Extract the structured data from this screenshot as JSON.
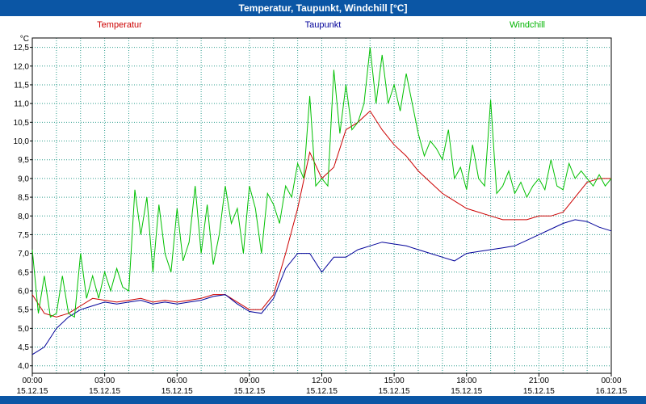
{
  "window": {
    "title": "Temperatur, Taupunkt, Windchill [°C]"
  },
  "colors": {
    "titlebar": "#0b56a5",
    "grid": "#2e9e8e",
    "plot_border": "#000000",
    "axis_text": "#000000",
    "temperatur": "#cc0000",
    "taupunkt": "#000099",
    "windchill": "#00c000"
  },
  "legend": [
    {
      "label": "Temperatur",
      "color": "#cc0000"
    },
    {
      "label": "Taupunkt",
      "color": "#000099"
    },
    {
      "label": "Windchill",
      "color": "#00b400"
    }
  ],
  "chart_data": {
    "type": "line",
    "title": "Temperatur, Taupunkt, Windchill [°C]",
    "ylabel": "°C",
    "ylim": [
      3.8,
      12.75
    ],
    "grid": {
      "on": true,
      "x_interval_hours": 1,
      "y_interval": 0.5
    },
    "yticks": [
      {
        "value": 12.5,
        "label": "12,5"
      },
      {
        "value": 12.0,
        "label": "12,0"
      },
      {
        "value": 11.5,
        "label": "11,5"
      },
      {
        "value": 11.0,
        "label": "11,0"
      },
      {
        "value": 10.5,
        "label": "10,5"
      },
      {
        "value": 10.0,
        "label": "10,0"
      },
      {
        "value": 9.5,
        "label": "9,5"
      },
      {
        "value": 9.0,
        "label": "9,0"
      },
      {
        "value": 8.5,
        "label": "8,5"
      },
      {
        "value": 8.0,
        "label": "8,0"
      },
      {
        "value": 7.5,
        "label": "7,5"
      },
      {
        "value": 7.0,
        "label": "7,0"
      },
      {
        "value": 6.5,
        "label": "6,5"
      },
      {
        "value": 6.0,
        "label": "6,0"
      },
      {
        "value": 5.5,
        "label": "5,5"
      },
      {
        "value": 5.0,
        "label": "5,0"
      },
      {
        "value": 4.5,
        "label": "4,5"
      },
      {
        "value": 4.0,
        "label": "4,0"
      }
    ],
    "xlim_hours": [
      0,
      24
    ],
    "xticks": [
      {
        "hour": 0,
        "time": "00:00",
        "date": "15.12.15"
      },
      {
        "hour": 3,
        "time": "03:00",
        "date": "15.12.15"
      },
      {
        "hour": 6,
        "time": "06:00",
        "date": "15.12.15"
      },
      {
        "hour": 9,
        "time": "09:00",
        "date": "15.12.15"
      },
      {
        "hour": 12,
        "time": "12:00",
        "date": "15.12.15"
      },
      {
        "hour": 15,
        "time": "15:00",
        "date": "15.12.15"
      },
      {
        "hour": 18,
        "time": "18:00",
        "date": "15.12.15"
      },
      {
        "hour": 21,
        "time": "21:00",
        "date": "15.12.15"
      },
      {
        "hour": 24,
        "time": "00:00",
        "date": "16.12.15"
      }
    ],
    "series": [
      {
        "name": "Temperatur",
        "color": "#cc0000",
        "step_hours": 0.5,
        "values": [
          5.9,
          5.4,
          5.3,
          5.4,
          5.6,
          5.8,
          5.75,
          5.7,
          5.75,
          5.8,
          5.7,
          5.75,
          5.7,
          5.75,
          5.8,
          5.9,
          5.9,
          5.7,
          5.5,
          5.5,
          5.9,
          7.0,
          8.2,
          9.7,
          9.0,
          9.3,
          10.3,
          10.5,
          10.8,
          10.3,
          9.9,
          9.6,
          9.2,
          8.9,
          8.6,
          8.4,
          8.2,
          8.1,
          8.0,
          7.9,
          7.9,
          7.9,
          8.0,
          8.0,
          8.1,
          8.5,
          8.9,
          9.0,
          9.0
        ]
      },
      {
        "name": "Taupunkt",
        "color": "#000099",
        "step_hours": 0.5,
        "values": [
          4.3,
          4.5,
          5.0,
          5.3,
          5.5,
          5.6,
          5.7,
          5.65,
          5.7,
          5.75,
          5.65,
          5.7,
          5.65,
          5.7,
          5.75,
          5.85,
          5.9,
          5.65,
          5.45,
          5.4,
          5.8,
          6.6,
          7.0,
          7.0,
          6.5,
          6.9,
          6.9,
          7.1,
          7.2,
          7.3,
          7.25,
          7.2,
          7.1,
          7.0,
          6.9,
          6.8,
          7.0,
          7.05,
          7.1,
          7.15,
          7.2,
          7.35,
          7.5,
          7.65,
          7.8,
          7.9,
          7.85,
          7.7,
          7.6
        ]
      },
      {
        "name": "Windchill",
        "color": "#00c000",
        "step_hours": 0.25,
        "values": [
          7.1,
          5.4,
          6.4,
          5.3,
          5.4,
          6.4,
          5.4,
          5.3,
          7.0,
          5.8,
          6.4,
          5.8,
          6.5,
          6.0,
          6.6,
          6.1,
          6.0,
          8.7,
          7.5,
          8.5,
          6.5,
          8.3,
          7.0,
          6.5,
          8.2,
          6.8,
          7.3,
          8.8,
          7.0,
          8.3,
          6.7,
          7.5,
          8.8,
          7.8,
          8.2,
          7.0,
          8.8,
          8.2,
          7.0,
          8.6,
          8.3,
          7.8,
          8.8,
          8.5,
          9.4,
          9.0,
          11.2,
          8.8,
          9.0,
          8.8,
          11.9,
          10.2,
          11.5,
          10.3,
          10.5,
          11.0,
          12.5,
          11.0,
          12.3,
          11.0,
          11.5,
          10.8,
          11.8,
          11.0,
          10.2,
          9.6,
          10.0,
          9.8,
          9.5,
          10.3,
          9.0,
          9.3,
          8.7,
          9.9,
          9.0,
          8.8,
          11.1,
          8.6,
          8.8,
          9.2,
          8.6,
          8.9,
          8.5,
          8.8,
          9.0,
          8.7,
          9.5,
          8.8,
          8.7,
          9.4,
          9.0,
          9.2,
          9.0,
          8.8,
          9.1,
          8.8,
          9.0
        ]
      }
    ]
  }
}
